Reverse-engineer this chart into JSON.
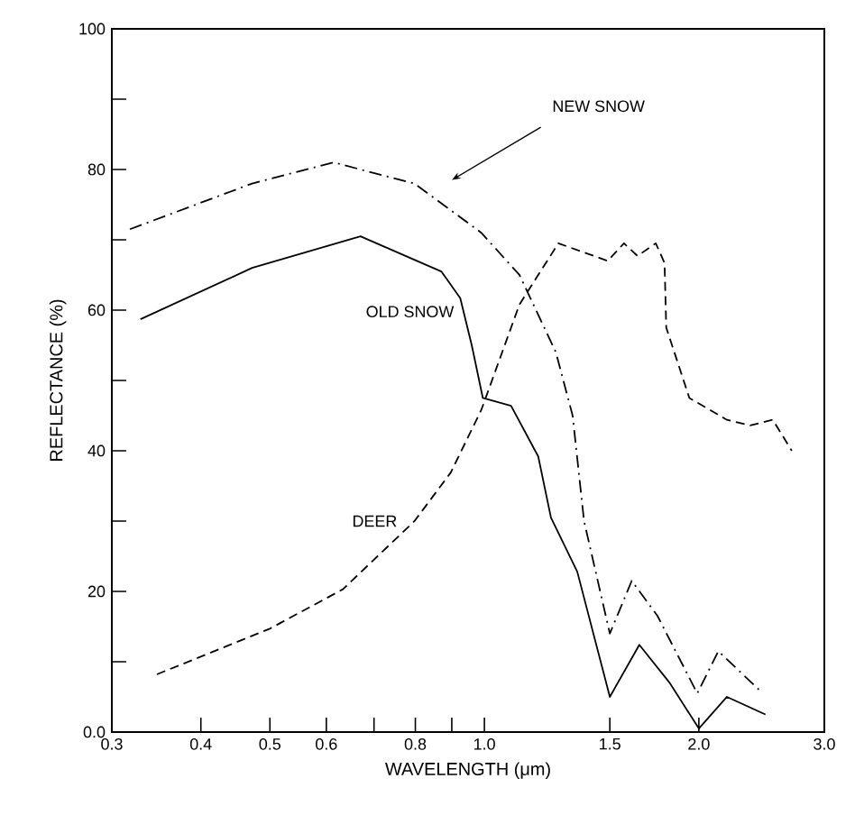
{
  "chart_data": {
    "type": "line",
    "xlabel": "WAVELENGTH (μm)",
    "ylabel": "REFLECTANCE (%)",
    "log": "x",
    "xlim": [
      0.3,
      3.0
    ],
    "ylim": [
      0,
      100
    ],
    "xticks": [
      0.3,
      0.4,
      0.5,
      0.6,
      {
        "value": 0.7,
        "label": null
      },
      0.8,
      {
        "value": 0.9,
        "label": null
      },
      {
        "value": 1,
        "label": "1.0"
      },
      1.5,
      {
        "value": 2,
        "label": "2.0"
      },
      {
        "value": 3,
        "label": "3.0"
      }
    ],
    "yticks": [
      {
        "value": 0,
        "label": "0.0"
      },
      {
        "value": 10,
        "label": null
      },
      20,
      {
        "value": 30,
        "label": null
      },
      40,
      {
        "value": 50,
        "label": null
      },
      60,
      {
        "value": 70,
        "label": null
      },
      80,
      {
        "value": 90,
        "label": null
      },
      100
    ],
    "series": [
      {
        "name": "NEW SNOW",
        "color": "#000000",
        "line_style": "dashdot",
        "x": [
          0.318,
          0.472,
          0.614,
          0.798,
          0.99,
          1.12,
          1.26,
          1.33,
          1.38,
          1.5,
          1.61,
          1.75,
          1.99,
          2.13,
          2.43
        ],
        "values": [
          71.5,
          78,
          81,
          78,
          71,
          65,
          54,
          45,
          30,
          14,
          21.5,
          16.5,
          5.5,
          11.5,
          6
        ]
      },
      {
        "name": "OLD SNOW",
        "color": "#000000",
        "line_style": "solid",
        "x": [
          0.329,
          0.472,
          0.67,
          0.87,
          0.925,
          0.96,
          0.995,
          1.09,
          1.19,
          1.24,
          1.35,
          1.5,
          1.65,
          1.82,
          2.0,
          2.19,
          2.48
        ],
        "values": [
          58.7,
          66,
          70.5,
          65.5,
          61.7,
          55,
          47.5,
          46.4,
          39.2,
          30.5,
          22.8,
          5,
          12.4,
          7,
          0.5,
          5,
          2.5
        ]
      },
      {
        "name": "DEER",
        "color": "#000000",
        "line_style": "dashed",
        "x": [
          0.347,
          0.5,
          0.633,
          0.798,
          0.897,
          0.99,
          1.12,
          1.27,
          1.49,
          1.57,
          1.64,
          1.74,
          1.79,
          1.8,
          1.94,
          2.19,
          2.36,
          2.54,
          2.7
        ],
        "values": [
          8.2,
          14.7,
          20.3,
          30,
          36.9,
          45.8,
          60.8,
          69.5,
          67,
          69.5,
          67.7,
          69.5,
          66.7,
          57.5,
          47.5,
          44.4,
          43.6,
          44.4,
          40
        ]
      }
    ]
  }
}
